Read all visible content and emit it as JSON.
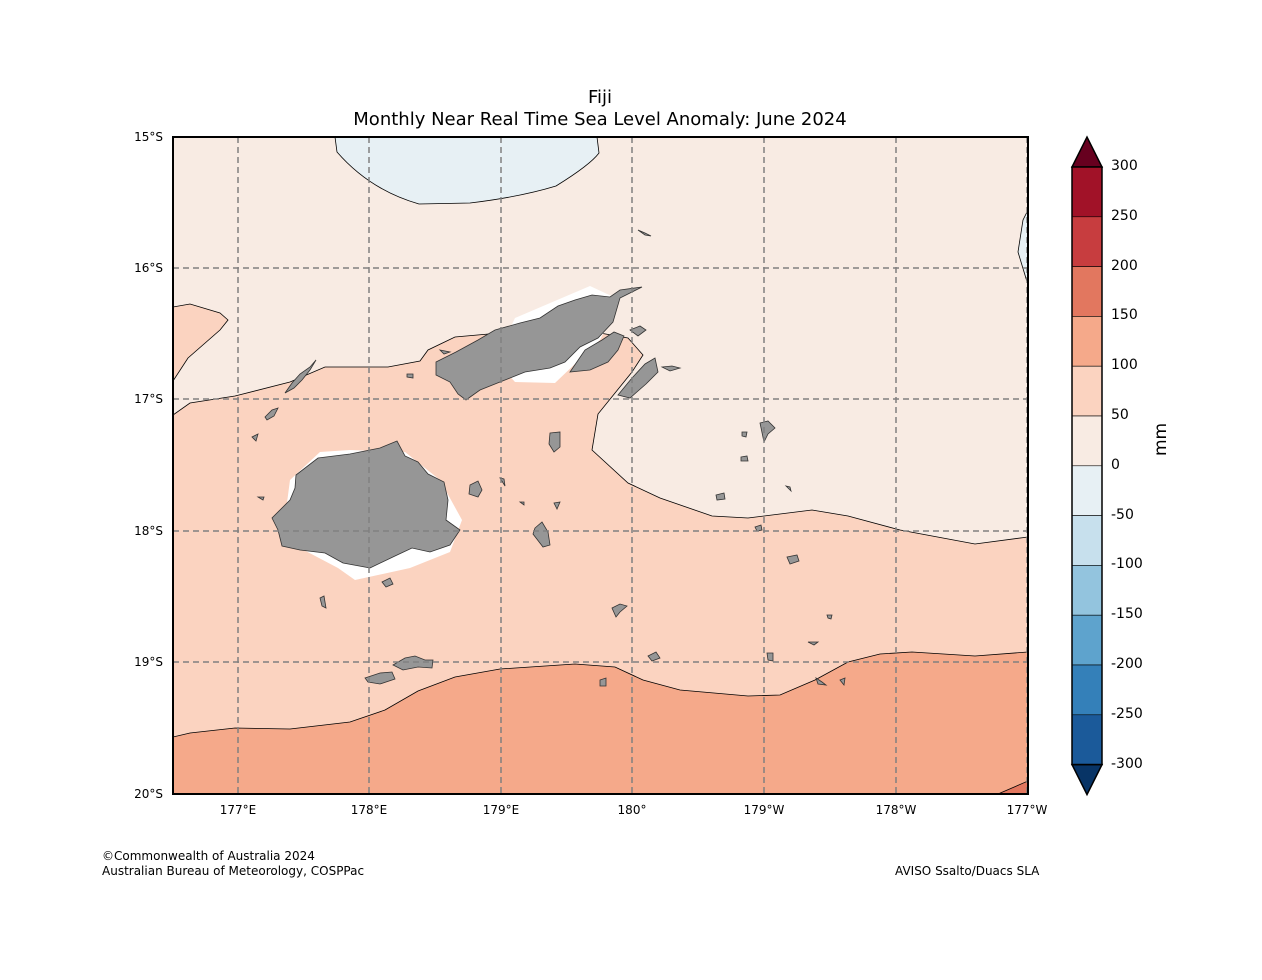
{
  "title": {
    "line1": "Fiji",
    "line2": "Monthly Near Real Time Sea Level Anomaly: June 2024"
  },
  "axes": {
    "lat_labels": [
      "15°S",
      "16°S",
      "17°S",
      "18°S",
      "19°S",
      "20°S"
    ],
    "lon_labels": [
      "177°E",
      "178°E",
      "179°E",
      "180°",
      "179°W",
      "178°W",
      "177°W"
    ],
    "lat_range": [
      -20,
      -15
    ],
    "lon_range": [
      176.5,
      183.0
    ],
    "grid": true
  },
  "colorbar": {
    "unit": "mm",
    "labels": [
      "300",
      "250",
      "200",
      "150",
      "100",
      "50",
      "0",
      "-50",
      "-100",
      "-150",
      "-200",
      "-250",
      "-300"
    ],
    "colors": [
      "#67001f",
      "#a11228",
      "#c73d3f",
      "#e2775f",
      "#f5a98a",
      "#fbd3c0",
      "#f8ebe3",
      "#e7f0f4",
      "#c7e0ed",
      "#93c4de",
      "#5ea3cd",
      "#3480b9",
      "#1b5a9a",
      "#083466"
    ]
  },
  "credits": {
    "left_line1": "©Commonwealth of Australia 2024",
    "left_line2": "Australian Bureau of Meteorology, COSPPac",
    "right": "AVISO Ssalto/Duacs SLA"
  }
}
